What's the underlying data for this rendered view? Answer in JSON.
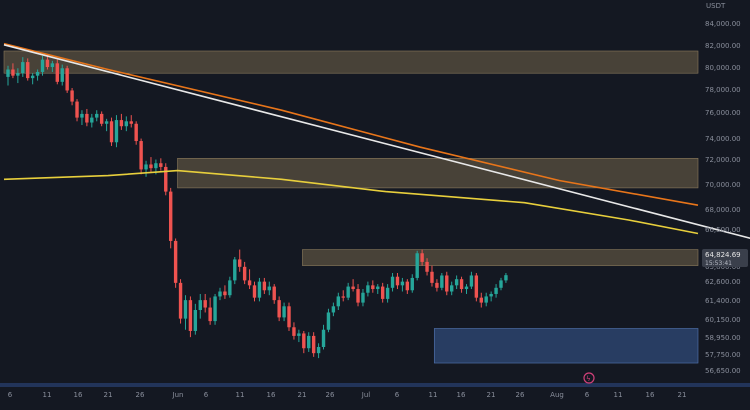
{
  "chart_data": {
    "type": "candlestick",
    "currency_label": "USDT",
    "ylim": [
      56000,
      86000
    ],
    "y_ticks": [
      "84,000.00",
      "82,000.00",
      "80,000.00",
      "78,000.00",
      "76,000.00",
      "74,000.00",
      "72,000.00",
      "70,000.00",
      "68,000.00",
      "66,500.00",
      "64,000.00",
      "63,800.00",
      "62,600.00",
      "61,400.00",
      "60,150.00",
      "58,950.00",
      "57,750.00",
      "56,650.00"
    ],
    "x_ticks": [
      "6",
      "11",
      "16",
      "21",
      "26",
      "Jun",
      "6",
      "11",
      "16",
      "21",
      "26",
      "Jul",
      "6",
      "11",
      "16",
      "21",
      "26",
      "Aug",
      "6",
      "11",
      "16",
      "21"
    ],
    "last_price": "64,824.69",
    "countdown": "15:53:41",
    "zones": [
      {
        "y0": 81200,
        "y1": 83000,
        "x0": 0,
        "x1": 100,
        "type": "resistance"
      },
      {
        "y0": 71900,
        "y1": 74300,
        "x0": 25,
        "x1": 100,
        "type": "resistance"
      },
      {
        "y0": 65600,
        "y1": 66900,
        "x0": 43,
        "x1": 100,
        "type": "resistance"
      },
      {
        "y0": 57700,
        "y1": 60500,
        "x0": 62,
        "x1": 100,
        "type": "support"
      }
    ],
    "moving_averages": [
      {
        "color": "#e8751a",
        "points": [
          [
            0,
            83600
          ],
          [
            15,
            81500
          ],
          [
            40,
            78200
          ],
          [
            60,
            75200
          ],
          [
            80,
            72500
          ],
          [
            100,
            70500
          ]
        ]
      },
      {
        "color": "#e8cf3c",
        "points": [
          [
            0,
            72600
          ],
          [
            15,
            72900
          ],
          [
            25,
            73300
          ],
          [
            40,
            72600
          ],
          [
            55,
            71600
          ],
          [
            75,
            70700
          ],
          [
            90,
            69300
          ],
          [
            100,
            68200
          ]
        ]
      }
    ],
    "trendline": {
      "color": "#e8e8e8",
      "points": [
        [
          0,
          83500
        ],
        [
          120,
          66000
        ]
      ]
    },
    "candles": [
      {
        "o": 80900,
        "h": 81800,
        "l": 80200,
        "c": 81500
      },
      {
        "o": 81500,
        "h": 82000,
        "l": 80800,
        "c": 81000
      },
      {
        "o": 81000,
        "h": 81600,
        "l": 80400,
        "c": 81200
      },
      {
        "o": 81200,
        "h": 82500,
        "l": 80900,
        "c": 82100
      },
      {
        "o": 82100,
        "h": 82400,
        "l": 80600,
        "c": 80800
      },
      {
        "o": 80800,
        "h": 81200,
        "l": 80300,
        "c": 81000
      },
      {
        "o": 81000,
        "h": 81500,
        "l": 80600,
        "c": 81300
      },
      {
        "o": 81300,
        "h": 82600,
        "l": 81000,
        "c": 82300
      },
      {
        "o": 82300,
        "h": 82700,
        "l": 81500,
        "c": 81700
      },
      {
        "o": 81700,
        "h": 82200,
        "l": 81300,
        "c": 82000
      },
      {
        "o": 82000,
        "h": 82300,
        "l": 80300,
        "c": 80500
      },
      {
        "o": 80500,
        "h": 81900,
        "l": 80200,
        "c": 81600
      },
      {
        "o": 81600,
        "h": 81800,
        "l": 79600,
        "c": 79800
      },
      {
        "o": 79800,
        "h": 80000,
        "l": 78600,
        "c": 78900
      },
      {
        "o": 78900,
        "h": 79100,
        "l": 77300,
        "c": 77600
      },
      {
        "o": 77600,
        "h": 78200,
        "l": 77000,
        "c": 77900
      },
      {
        "o": 77900,
        "h": 78300,
        "l": 76900,
        "c": 77200
      },
      {
        "o": 77200,
        "h": 77900,
        "l": 76800,
        "c": 77600
      },
      {
        "o": 77600,
        "h": 78200,
        "l": 77300,
        "c": 77900
      },
      {
        "o": 77900,
        "h": 78100,
        "l": 76900,
        "c": 77100
      },
      {
        "o": 77100,
        "h": 77500,
        "l": 76500,
        "c": 77300
      },
      {
        "o": 77300,
        "h": 77600,
        "l": 75300,
        "c": 75600
      },
      {
        "o": 75600,
        "h": 77800,
        "l": 75200,
        "c": 77400
      },
      {
        "o": 77400,
        "h": 77900,
        "l": 76600,
        "c": 76900
      },
      {
        "o": 76900,
        "h": 77700,
        "l": 76500,
        "c": 77300
      },
      {
        "o": 77300,
        "h": 77800,
        "l": 76800,
        "c": 77100
      },
      {
        "o": 77100,
        "h": 77300,
        "l": 75400,
        "c": 75700
      },
      {
        "o": 75700,
        "h": 75900,
        "l": 73000,
        "c": 73400
      },
      {
        "o": 73400,
        "h": 74100,
        "l": 72800,
        "c": 73800
      },
      {
        "o": 73800,
        "h": 74400,
        "l": 73200,
        "c": 73500
      },
      {
        "o": 73500,
        "h": 74200,
        "l": 73000,
        "c": 73900
      },
      {
        "o": 73900,
        "h": 74300,
        "l": 73300,
        "c": 73600
      },
      {
        "o": 73600,
        "h": 73900,
        "l": 71300,
        "c": 71600
      },
      {
        "o": 71600,
        "h": 71900,
        "l": 67000,
        "c": 67600
      },
      {
        "o": 67600,
        "h": 67800,
        "l": 63800,
        "c": 64200
      },
      {
        "o": 64200,
        "h": 64500,
        "l": 60900,
        "c": 61300
      },
      {
        "o": 61300,
        "h": 63200,
        "l": 60400,
        "c": 62800
      },
      {
        "o": 62800,
        "h": 63100,
        "l": 59800,
        "c": 60300
      },
      {
        "o": 60300,
        "h": 62500,
        "l": 60000,
        "c": 62000
      },
      {
        "o": 62000,
        "h": 63300,
        "l": 61300,
        "c": 62800
      },
      {
        "o": 62800,
        "h": 63300,
        "l": 61800,
        "c": 62200
      },
      {
        "o": 62200,
        "h": 63000,
        "l": 60800,
        "c": 61100
      },
      {
        "o": 61100,
        "h": 63300,
        "l": 60800,
        "c": 63100
      },
      {
        "o": 63100,
        "h": 63800,
        "l": 62800,
        "c": 63500
      },
      {
        "o": 63500,
        "h": 64000,
        "l": 62900,
        "c": 63200
      },
      {
        "o": 63200,
        "h": 64700,
        "l": 63000,
        "c": 64400
      },
      {
        "o": 64400,
        "h": 66300,
        "l": 64100,
        "c": 66100
      },
      {
        "o": 66100,
        "h": 66900,
        "l": 65100,
        "c": 65500
      },
      {
        "o": 65500,
        "h": 65900,
        "l": 64100,
        "c": 64400
      },
      {
        "o": 64400,
        "h": 65300,
        "l": 63700,
        "c": 64000
      },
      {
        "o": 64000,
        "h": 64300,
        "l": 62700,
        "c": 63000
      },
      {
        "o": 63000,
        "h": 64600,
        "l": 62700,
        "c": 64300
      },
      {
        "o": 64300,
        "h": 64600,
        "l": 63300,
        "c": 63600
      },
      {
        "o": 63600,
        "h": 64300,
        "l": 63200,
        "c": 63900
      },
      {
        "o": 63900,
        "h": 64100,
        "l": 62500,
        "c": 62800
      },
      {
        "o": 62800,
        "h": 63100,
        "l": 61100,
        "c": 61400
      },
      {
        "o": 61400,
        "h": 62600,
        "l": 61100,
        "c": 62300
      },
      {
        "o": 62300,
        "h": 62600,
        "l": 60300,
        "c": 60600
      },
      {
        "o": 60600,
        "h": 61000,
        "l": 59600,
        "c": 59900
      },
      {
        "o": 59900,
        "h": 60400,
        "l": 59400,
        "c": 60100
      },
      {
        "o": 60100,
        "h": 60300,
        "l": 58500,
        "c": 58900
      },
      {
        "o": 58900,
        "h": 60200,
        "l": 58600,
        "c": 59900
      },
      {
        "o": 59900,
        "h": 60200,
        "l": 58200,
        "c": 58500
      },
      {
        "o": 58500,
        "h": 59300,
        "l": 58100,
        "c": 59000
      },
      {
        "o": 59000,
        "h": 60800,
        "l": 58800,
        "c": 60400
      },
      {
        "o": 60400,
        "h": 62100,
        "l": 60200,
        "c": 61800
      },
      {
        "o": 61800,
        "h": 62600,
        "l": 61500,
        "c": 62300
      },
      {
        "o": 62300,
        "h": 63400,
        "l": 62000,
        "c": 63100
      },
      {
        "o": 63100,
        "h": 63600,
        "l": 62700,
        "c": 63000
      },
      {
        "o": 63000,
        "h": 64200,
        "l": 62800,
        "c": 63900
      },
      {
        "o": 63900,
        "h": 64500,
        "l": 63500,
        "c": 63700
      },
      {
        "o": 63700,
        "h": 64100,
        "l": 62300,
        "c": 62600
      },
      {
        "o": 62600,
        "h": 63700,
        "l": 62300,
        "c": 63400
      },
      {
        "o": 63400,
        "h": 64300,
        "l": 63100,
        "c": 64000
      },
      {
        "o": 64000,
        "h": 64400,
        "l": 63400,
        "c": 63700
      },
      {
        "o": 63700,
        "h": 64100,
        "l": 63300,
        "c": 63900
      },
      {
        "o": 63900,
        "h": 64200,
        "l": 62600,
        "c": 62900
      },
      {
        "o": 62900,
        "h": 64100,
        "l": 62600,
        "c": 63800
      },
      {
        "o": 63800,
        "h": 65000,
        "l": 63500,
        "c": 64700
      },
      {
        "o": 64700,
        "h": 65000,
        "l": 63700,
        "c": 64000
      },
      {
        "o": 64000,
        "h": 64600,
        "l": 63500,
        "c": 64300
      },
      {
        "o": 64300,
        "h": 64500,
        "l": 63300,
        "c": 63600
      },
      {
        "o": 63600,
        "h": 64900,
        "l": 63400,
        "c": 64600
      },
      {
        "o": 64600,
        "h": 66800,
        "l": 64400,
        "c": 66600
      },
      {
        "o": 66600,
        "h": 66900,
        "l": 65600,
        "c": 65900
      },
      {
        "o": 65900,
        "h": 66200,
        "l": 64800,
        "c": 65100
      },
      {
        "o": 65100,
        "h": 65600,
        "l": 63900,
        "c": 64200
      },
      {
        "o": 64200,
        "h": 64500,
        "l": 63500,
        "c": 63800
      },
      {
        "o": 63800,
        "h": 65000,
        "l": 63600,
        "c": 64800
      },
      {
        "o": 64800,
        "h": 65100,
        "l": 63200,
        "c": 63500
      },
      {
        "o": 63500,
        "h": 64300,
        "l": 63200,
        "c": 64000
      },
      {
        "o": 64000,
        "h": 64800,
        "l": 63700,
        "c": 64500
      },
      {
        "o": 64500,
        "h": 64700,
        "l": 63400,
        "c": 63700
      },
      {
        "o": 63700,
        "h": 64100,
        "l": 63300,
        "c": 63900
      },
      {
        "o": 63900,
        "h": 65100,
        "l": 63700,
        "c": 64800
      },
      {
        "o": 64800,
        "h": 65000,
        "l": 62700,
        "c": 63000
      },
      {
        "o": 63000,
        "h": 63400,
        "l": 62200,
        "c": 62600
      },
      {
        "o": 62600,
        "h": 63400,
        "l": 62300,
        "c": 63100
      },
      {
        "o": 63100,
        "h": 63500,
        "l": 62700,
        "c": 63300
      },
      {
        "o": 63300,
        "h": 64100,
        "l": 63000,
        "c": 63800
      },
      {
        "o": 63800,
        "h": 64600,
        "l": 63600,
        "c": 64400
      },
      {
        "o": 64400,
        "h": 65000,
        "l": 64200,
        "c": 64824
      }
    ]
  }
}
